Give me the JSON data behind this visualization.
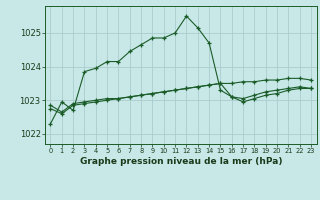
{
  "xlabel": "Graphe pression niveau de la mer (hPa)",
  "background_color": "#c8e8e8",
  "grid_color": "#aacccc",
  "line_color": "#1a5c28",
  "xlim": [
    -0.5,
    23.5
  ],
  "ylim": [
    1021.7,
    1025.8
  ],
  "yticks": [
    1022,
    1023,
    1024,
    1025
  ],
  "xticks": [
    0,
    1,
    2,
    3,
    4,
    5,
    6,
    7,
    8,
    9,
    10,
    11,
    12,
    13,
    14,
    15,
    16,
    17,
    18,
    19,
    20,
    21,
    22,
    23
  ],
  "series1": [
    1022.3,
    1022.95,
    1022.7,
    1023.85,
    1023.95,
    1024.15,
    1024.15,
    1024.45,
    1024.65,
    1024.85,
    1024.85,
    1025.0,
    1025.5,
    1025.15,
    1024.7,
    1023.3,
    1023.1,
    1022.95,
    1023.05,
    1023.15,
    1023.2,
    1023.3,
    1023.35,
    1023.35
  ],
  "series2": [
    1022.85,
    1022.65,
    1022.9,
    1022.95,
    1023.0,
    1023.05,
    1023.05,
    1023.1,
    1023.15,
    1023.2,
    1023.25,
    1023.3,
    1023.35,
    1023.4,
    1023.45,
    1023.5,
    1023.1,
    1023.05,
    1023.15,
    1023.25,
    1023.3,
    1023.35,
    1023.4,
    1023.35
  ],
  "series3": [
    1022.75,
    1022.6,
    1022.85,
    1022.9,
    1022.95,
    1023.0,
    1023.05,
    1023.1,
    1023.15,
    1023.2,
    1023.25,
    1023.3,
    1023.35,
    1023.4,
    1023.45,
    1023.5,
    1023.5,
    1023.55,
    1023.55,
    1023.6,
    1023.6,
    1023.65,
    1023.65,
    1023.6
  ]
}
